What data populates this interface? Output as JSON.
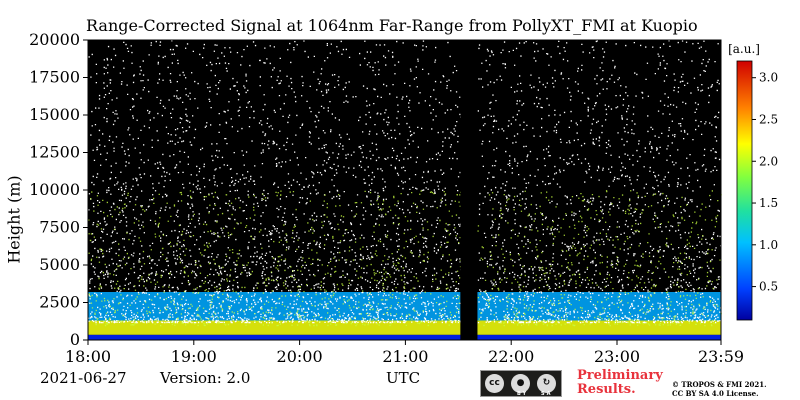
{
  "chart_data": {
    "type": "heatmap",
    "title": "Range-Corrected Signal at 1064nm Far-Range from PollyXT_FMI at Kuopio",
    "ylabel": "Height (m)",
    "xlabel": "UTC",
    "x_ticks": [
      "18:00",
      "19:00",
      "20:00",
      "21:00",
      "22:00",
      "23:00",
      "23:59"
    ],
    "x_range_hours": [
      18.0,
      23.983
    ],
    "y_ticks": [
      0,
      2500,
      5000,
      7500,
      10000,
      12500,
      15000,
      17500,
      20000
    ],
    "ylim": [
      0,
      20000
    ],
    "colorbar": {
      "unit": "[a.u.]",
      "ticks": [
        0.5,
        1.0,
        1.5,
        2.0,
        2.5,
        3.0
      ],
      "range": [
        0.1,
        3.2
      ],
      "colormap": "jet"
    },
    "data_gap_hours": [
      21.52,
      21.68
    ],
    "layers": [
      {
        "name": "surface",
        "bottom_m": 0,
        "top_m": 350,
        "value": 0.6
      },
      {
        "name": "boundary_layer",
        "bottom_m": 350,
        "top_m": 1300,
        "value": 2.0
      },
      {
        "name": "residual_layer",
        "bottom_m": 1300,
        "top_m": 3200,
        "value": 1.0
      }
    ],
    "noise_background": "black",
    "grid": false
  },
  "footer": {
    "date": "2021-06-27",
    "version": "Version: 2.0",
    "license_badge": {
      "cc": "cc",
      "by": "BY",
      "sa": "SA"
    },
    "preliminary": [
      "Preliminary",
      "Results."
    ],
    "copyright": [
      "© TROPOS & FMI 2021.",
      "CC BY SA 4.0 License."
    ]
  }
}
